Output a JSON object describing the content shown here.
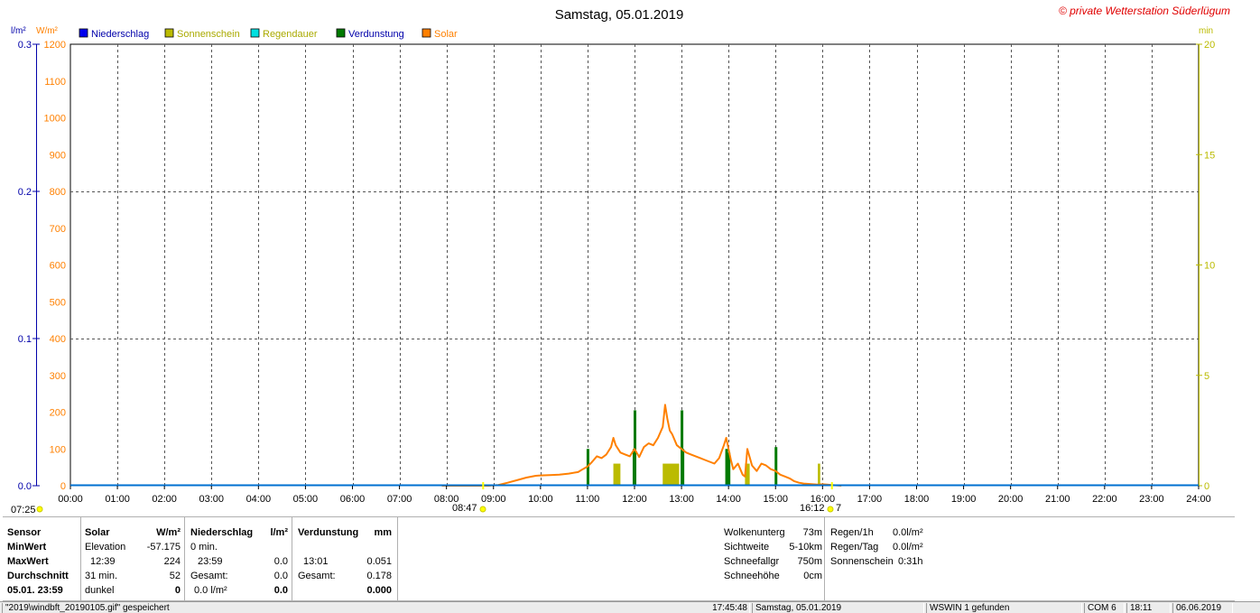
{
  "chart_data": {
    "type": "line",
    "title": "Samstag, 05.01.2019",
    "copyright": "© private Wetterstation Süderlügum",
    "axis_units": {
      "left_outer": "l/m²",
      "left_inner": "W/m²",
      "right": "min"
    },
    "legend": [
      {
        "name": "Niederschlag",
        "color": "#0000ee"
      },
      {
        "name": "Sonnenschein",
        "color": "#bbbb00"
      },
      {
        "name": "Regendauer",
        "color": "#00e0e0"
      },
      {
        "name": "Verdunstung",
        "color": "#007a00"
      },
      {
        "name": "Solar",
        "color": "#ff8000"
      }
    ],
    "legend_placement": "top-left",
    "grid": true,
    "x_ticks": [
      "00:00",
      "01:00",
      "02:00",
      "03:00",
      "04:00",
      "05:00",
      "06:00",
      "07:00",
      "08:00",
      "09:00",
      "10:00",
      "11:00",
      "12:00",
      "13:00",
      "14:00",
      "15:00",
      "16:00",
      "17:00",
      "18:00",
      "19:00",
      "20:00",
      "21:00",
      "22:00",
      "23:00",
      "24:00"
    ],
    "xlim_hours": [
      0,
      24
    ],
    "y_solar": {
      "ticks": [
        0,
        100,
        200,
        300,
        400,
        500,
        600,
        700,
        800,
        900,
        1000,
        1100,
        1200
      ],
      "ylim": [
        0,
        1200
      ],
      "color": "#ff8000"
    },
    "y_precip": {
      "ticks": [
        "0.0",
        "0.1",
        "0.2",
        "0.3"
      ],
      "values": [
        0,
        0.1,
        0.2,
        0.3
      ],
      "color": "#0000aa"
    },
    "y_minutes": {
      "ticks": [
        "0",
        "5",
        "10",
        "15",
        "20"
      ],
      "values": [
        0,
        5,
        10,
        15,
        20
      ],
      "ylim": [
        0,
        20
      ],
      "color": "#bbbb00"
    },
    "markers": {
      "sunrise": "07:25",
      "sunset": "16:12",
      "sunset_extra": "7",
      "twilight": "08:47"
    },
    "series": [
      {
        "name": "Solar",
        "x_hours": [
          7.9,
          8.5,
          8.9,
          9.1,
          9.3,
          9.5,
          9.7,
          9.9,
          10.0,
          10.2,
          10.4,
          10.6,
          10.8,
          10.9,
          11.0,
          11.1,
          11.2,
          11.3,
          11.4,
          11.5,
          11.55,
          11.6,
          11.7,
          11.8,
          11.9,
          12.0,
          12.1,
          12.2,
          12.3,
          12.4,
          12.5,
          12.6,
          12.65,
          12.7,
          12.75,
          12.8,
          12.9,
          13.0,
          13.1,
          13.2,
          13.3,
          13.4,
          13.5,
          13.6,
          13.7,
          13.8,
          13.9,
          13.95,
          14.0,
          14.05,
          14.1,
          14.2,
          14.3,
          14.35,
          14.4,
          14.5,
          14.6,
          14.7,
          14.8,
          14.9,
          15.0,
          15.1,
          15.2,
          15.3,
          15.4,
          15.5,
          15.6,
          15.7,
          15.8,
          15.9,
          16.0,
          16.1,
          16.2,
          16.3,
          16.4
        ],
        "values": [
          0,
          0,
          0,
          2,
          8,
          15,
          22,
          27,
          28,
          29,
          30,
          33,
          37,
          45,
          52,
          65,
          80,
          75,
          85,
          105,
          130,
          110,
          90,
          85,
          80,
          100,
          78,
          105,
          115,
          110,
          130,
          160,
          220,
          180,
          150,
          140,
          110,
          100,
          90,
          85,
          80,
          75,
          70,
          65,
          60,
          75,
          110,
          130,
          100,
          70,
          45,
          60,
          30,
          25,
          100,
          55,
          40,
          60,
          55,
          45,
          40,
          30,
          25,
          20,
          12,
          8,
          6,
          5,
          4,
          3,
          4,
          3,
          2,
          1,
          0
        ]
      },
      {
        "name": "Sonnenschein",
        "bars": [
          {
            "x_hours": 11.55,
            "width_hours": 0.15,
            "minutes": 1.0
          },
          {
            "x_hours": 12.6,
            "width_hours": 0.35,
            "minutes": 1.0
          },
          {
            "x_hours": 13.95,
            "width_hours": 0.08,
            "minutes": 1.0
          },
          {
            "x_hours": 14.35,
            "width_hours": 0.1,
            "minutes": 1.0
          },
          {
            "x_hours": 15.9,
            "width_hours": 0.05,
            "minutes": 1.0
          }
        ]
      },
      {
        "name": "Verdunstung",
        "bars": [
          {
            "x_hours": 11.0,
            "value": 100
          },
          {
            "x_hours": 11.98,
            "value": 100
          },
          {
            "x_hours": 12.0,
            "value": 205
          },
          {
            "x_hours": 13.0,
            "value": 205
          },
          {
            "x_hours": 13.02,
            "value": 100
          },
          {
            "x_hours": 13.95,
            "value": 100
          },
          {
            "x_hours": 14.0,
            "value": 90
          },
          {
            "x_hours": 15.0,
            "value": 105
          }
        ]
      }
    ]
  },
  "panel": {
    "sensor": {
      "title": "Sensor",
      "rows": [
        "MinWert",
        "MaxWert",
        "Durchschnitt",
        "05.01. 23:59"
      ]
    },
    "solar": {
      "title": "Solar",
      "unit": "W/m²",
      "rows": [
        [
          "Elevation",
          "-57.175"
        ],
        [
          "12:39",
          "224"
        ],
        [
          "31 min.",
          "52"
        ],
        [
          "dunkel",
          "0"
        ]
      ]
    },
    "niederschlag": {
      "title": "Niederschlag",
      "unit": "l/m²",
      "rows": [
        [
          "0 min.",
          ""
        ],
        [
          "23:59",
          "0.0"
        ],
        [
          "Gesamt:",
          "0.0"
        ],
        [
          "0.0 l/m²",
          "0.0"
        ]
      ]
    },
    "verdunstung": {
      "title": "Verdunstung",
      "unit": "mm",
      "rows": [
        [
          "",
          ""
        ],
        [
          "13:01",
          "0.051"
        ],
        [
          "Gesamt:",
          "0.178"
        ],
        [
          "",
          "0.000"
        ]
      ]
    },
    "wolken": {
      "rows": [
        [
          "Wolkenunterg",
          "73m"
        ],
        [
          "Sichtweite",
          "5-10km"
        ],
        [
          "Schneefallgr",
          "750m"
        ],
        [
          "Schneehöhe",
          "0cm"
        ]
      ]
    },
    "regen": {
      "rows": [
        [
          "Regen/1h",
          "0.0l/m²"
        ],
        [
          "Regen/Tag",
          "0.0l/m²"
        ],
        [
          "Sonnenschein",
          "0:31h"
        ]
      ]
    }
  },
  "statusbar": {
    "file": "\"2019\\windbft_20190105.gif\" gespeichert",
    "time": "17:45:48",
    "date": "Samstag, 05.01.2019",
    "wswin": "WSWIN 1 gefunden",
    "com": "COM 6",
    "clock": "18:11",
    "today": "06.06.2019"
  }
}
